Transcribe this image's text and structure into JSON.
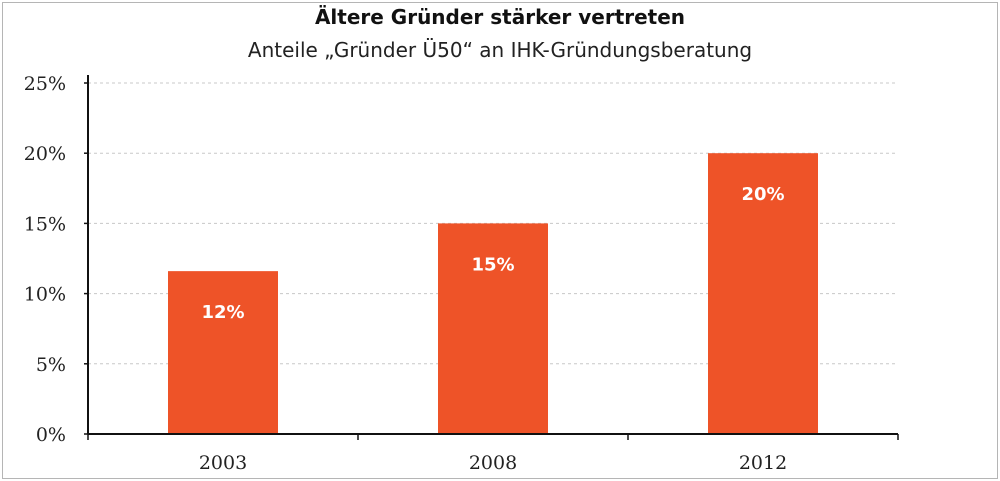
{
  "chart_data": {
    "type": "bar",
    "title": "Ältere Gründer stärker vertreten",
    "subtitle": "Anteile „Gründer Ü50“ an IHK-Gründungsberatung",
    "categories": [
      "2003",
      "2008",
      "2012"
    ],
    "values": [
      11.6,
      15.0,
      20.0
    ],
    "data_labels": [
      "12%",
      "15%",
      "20%"
    ],
    "ylim": [
      0,
      25
    ],
    "yticks": [
      0,
      5,
      10,
      15,
      20,
      25
    ],
    "ytick_labels": [
      "0%",
      "5%",
      "10%",
      "15%",
      "20%",
      "25%"
    ],
    "xlabel": "",
    "ylabel": "",
    "grid": true,
    "legend": "none",
    "colors": {
      "bar": "#ee5328",
      "grid": "#c8c8c8",
      "axis": "#111111"
    }
  }
}
